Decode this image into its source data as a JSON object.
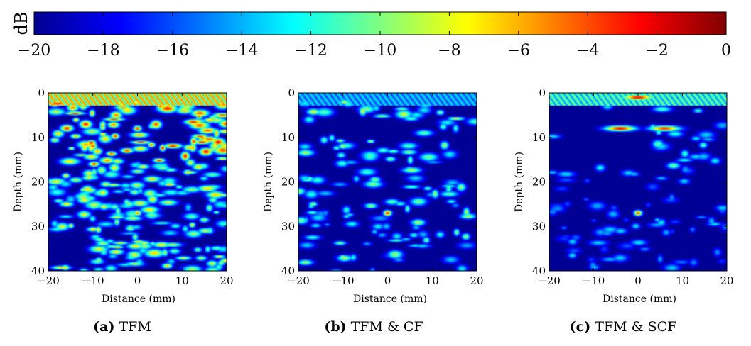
{
  "colorbar": {
    "label": "dB",
    "ticks": [
      "−20",
      "−18",
      "−16",
      "−14",
      "−12",
      "−10",
      "−8",
      "−6",
      "−4",
      "−2",
      "0"
    ],
    "colormap": [
      "#00008f",
      "#0000ff",
      "#00ffff",
      "#ffff00",
      "#ff0000",
      "#800000"
    ]
  },
  "chart_data": [
    {
      "type": "heatmap",
      "panel_letter": "(a)",
      "title": "TFM",
      "xlabel": "Distance (mm)",
      "ylabel": "Depth (mm)",
      "xlim": [
        -20,
        20
      ],
      "ylim": [
        40,
        0
      ],
      "xticks": [
        "−20",
        "−10",
        "0",
        "10",
        "20"
      ],
      "yticks": [
        "0",
        "10",
        "20",
        "30",
        "40"
      ],
      "clim": [
        -20,
        0
      ],
      "features": [
        {
          "x": 0,
          "y": 27,
          "value": -5
        },
        {
          "x": -10,
          "y": 12,
          "value": -3
        },
        {
          "x": 0,
          "y": 8,
          "value": -3
        }
      ]
    },
    {
      "type": "heatmap",
      "panel_letter": "(b)",
      "title": "TFM & CF",
      "xlabel": "Distance (mm)",
      "ylabel": "Depth (mm)",
      "xlim": [
        -20,
        20
      ],
      "ylim": [
        40,
        0
      ],
      "xticks": [
        "−20",
        "−10",
        "0",
        "10",
        "20"
      ],
      "yticks": [
        "0",
        "10",
        "20",
        "30",
        "40"
      ],
      "clim": [
        -20,
        0
      ],
      "features": [
        {
          "x": 0,
          "y": 27,
          "value": -2
        },
        {
          "x": -10,
          "y": 12,
          "value": -8
        }
      ]
    },
    {
      "type": "heatmap",
      "panel_letter": "(c)",
      "title": "TFM & SCF",
      "xlabel": "Distance (mm)",
      "ylabel": "Depth (mm)",
      "xlim": [
        -20,
        20
      ],
      "ylim": [
        40,
        0
      ],
      "xticks": [
        "−20",
        "−10",
        "0",
        "10",
        "20"
      ],
      "yticks": [
        "0",
        "10",
        "20",
        "30",
        "40"
      ],
      "clim": [
        -20,
        0
      ],
      "features": [
        {
          "x": 0,
          "y": 27,
          "value": -3
        },
        {
          "x": -4,
          "y": 8,
          "value": -2
        },
        {
          "x": 6,
          "y": 8,
          "value": -3
        },
        {
          "x": 0,
          "y": 1,
          "value": -2
        }
      ]
    }
  ]
}
